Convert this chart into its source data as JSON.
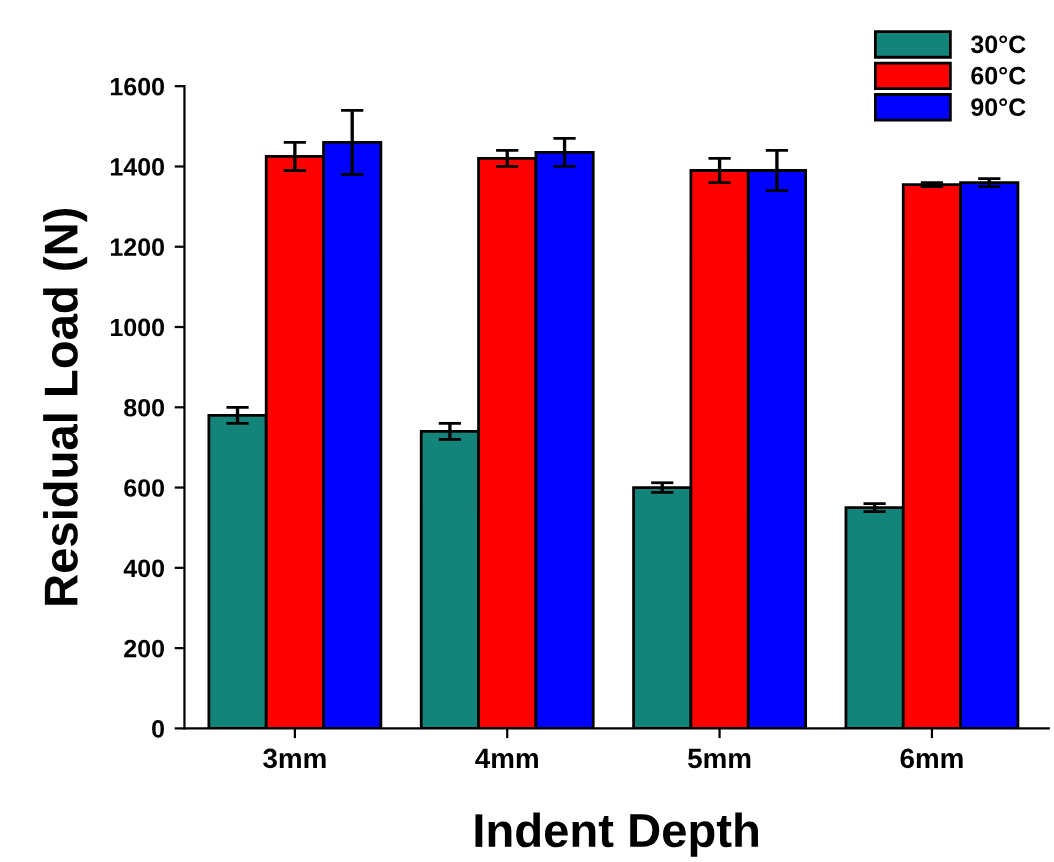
{
  "chart_data": {
    "type": "bar",
    "xlabel": "Indent Depth",
    "ylabel": "Residual Load (N)",
    "categories": [
      "3mm",
      "4mm",
      "5mm",
      "6mm"
    ],
    "series": [
      {
        "name": "30°C",
        "color": "#13847a",
        "values": [
          780,
          740,
          600,
          550
        ],
        "errors": [
          20,
          20,
          12,
          10
        ]
      },
      {
        "name": "60°C",
        "color": "#ff0000",
        "values": [
          1425,
          1420,
          1390,
          1355
        ],
        "errors": [
          35,
          20,
          30,
          5
        ]
      },
      {
        "name": "90°C",
        "color": "#0000ff",
        "values": [
          1460,
          1435,
          1390,
          1360
        ],
        "errors": [
          80,
          35,
          50,
          10
        ]
      }
    ],
    "ylim": [
      0,
      1600
    ],
    "yticks": [
      0,
      200,
      400,
      600,
      800,
      1000,
      1200,
      1400,
      1600
    ],
    "grid": false,
    "legend": "top right"
  }
}
